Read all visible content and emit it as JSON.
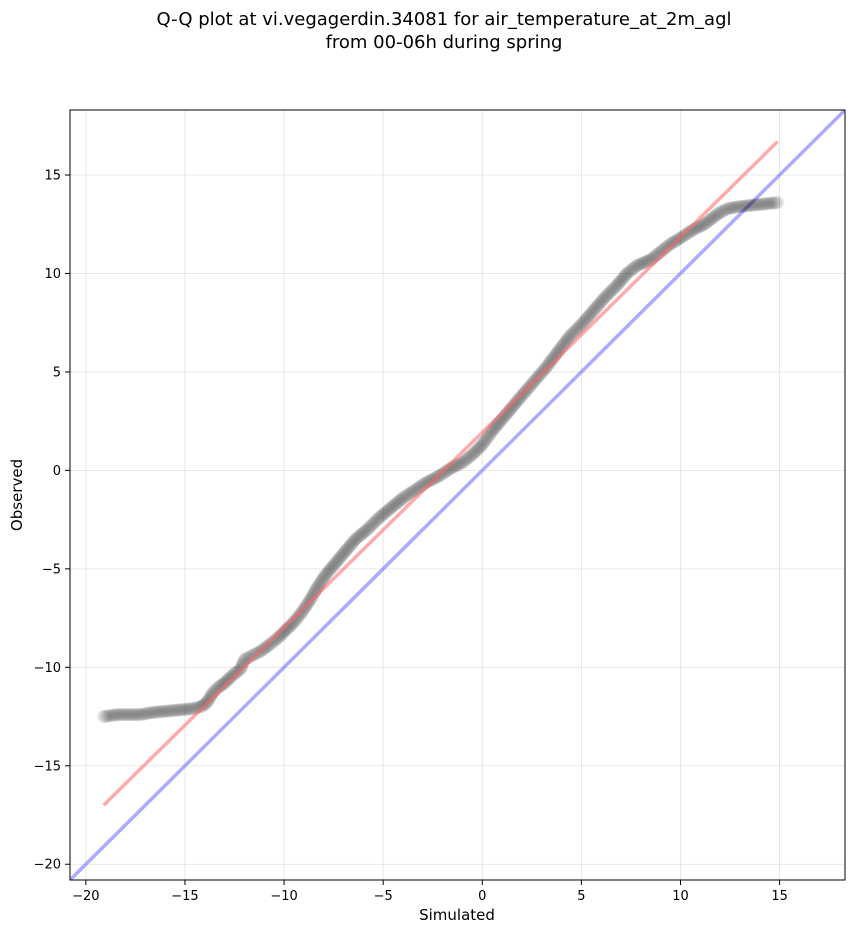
{
  "chart_data": {
    "type": "scatter",
    "title_lines": [
      "Q-Q plot at vi.vegagerdin.34081 for air_temperature_at_2m_agl",
      "from 00-06h during spring"
    ],
    "xlabel": "Simulated",
    "ylabel": "Observed",
    "xlim": [
      -20.8,
      18.3
    ],
    "ylim": [
      -20.8,
      18.3
    ],
    "xticks": [
      -20,
      -15,
      -10,
      -5,
      0,
      5,
      10,
      15
    ],
    "yticks": [
      -20,
      -15,
      -10,
      -5,
      0,
      5,
      10,
      15
    ],
    "tick_labels": [
      "−20",
      "−15",
      "−10",
      "−5",
      "0",
      "5",
      "10",
      "15"
    ],
    "grid": true,
    "colors": {
      "points": "#000000",
      "fit_line": "#ff6666",
      "identity_line": "#6666ff",
      "grid": "#b0b0b0"
    },
    "fit_line": {
      "x": [
        -19.1,
        14.9
      ],
      "y": [
        -17.0,
        16.7
      ]
    },
    "identity_line": {
      "x": [
        -20.8,
        18.3
      ],
      "y": [
        -20.8,
        18.3
      ]
    },
    "quantiles": {
      "x": [
        -19.1,
        -18.4,
        -17.2,
        -16.7,
        -14.6,
        -14.2,
        -13.9,
        -13.6,
        -13.3,
        -13.0,
        -12.6,
        -12.2,
        -12.0,
        -11.6,
        -11.2,
        -10.8,
        -10.3,
        -9.9,
        -9.5,
        -9.1,
        -8.7,
        -8.3,
        -7.9,
        -7.4,
        -6.9,
        -6.4,
        -5.8,
        -5.2,
        -4.6,
        -4.0,
        -3.4,
        -2.8,
        -2.2,
        -1.6,
        -1.0,
        -0.5,
        0.0,
        0.5,
        1.0,
        1.5,
        2.0,
        2.6,
        3.2,
        3.8,
        4.4,
        5.0,
        5.6,
        6.2,
        6.8,
        7.3,
        7.8,
        8.5,
        9.0,
        9.5,
        10.0,
        10.6,
        11.2,
        11.6,
        12.0,
        12.4,
        13.0,
        14.9
      ],
      "y": [
        -12.5,
        -12.4,
        -12.4,
        -12.3,
        -12.1,
        -12.0,
        -11.8,
        -11.3,
        -11.0,
        -10.8,
        -10.4,
        -10.1,
        -9.6,
        -9.4,
        -9.2,
        -8.9,
        -8.5,
        -8.1,
        -7.7,
        -7.2,
        -6.6,
        -5.9,
        -5.3,
        -4.7,
        -4.1,
        -3.5,
        -3.0,
        -2.4,
        -1.9,
        -1.4,
        -1.0,
        -0.6,
        -0.3,
        0.1,
        0.4,
        0.8,
        1.3,
        2.0,
        2.6,
        3.2,
        3.8,
        4.5,
        5.2,
        6.0,
        6.8,
        7.4,
        8.1,
        8.8,
        9.4,
        10.0,
        10.4,
        10.7,
        11.1,
        11.5,
        11.8,
        12.2,
        12.5,
        12.8,
        13.1,
        13.3,
        13.4,
        13.6
      ]
    }
  }
}
